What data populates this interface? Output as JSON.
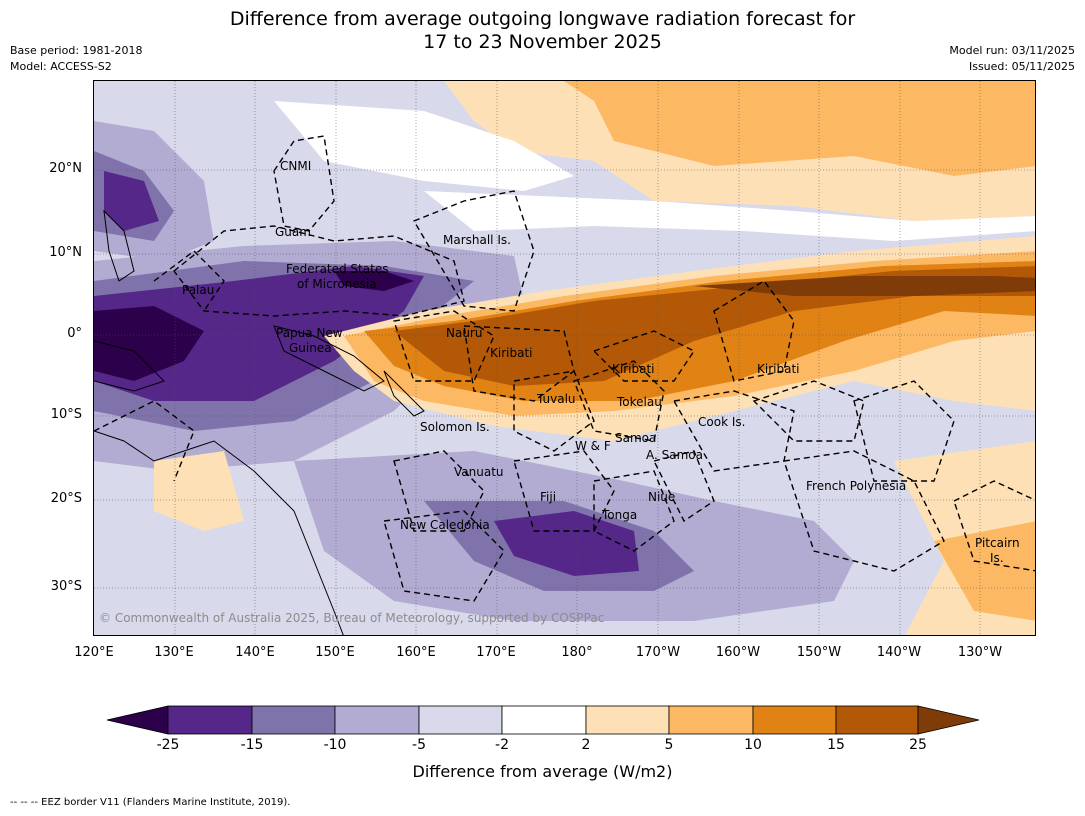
{
  "header": {
    "title_line1": "Difference from average outgoing longwave radiation forecast for",
    "title_line2": "17 to 23 November 2025",
    "base_period": "Base period: 1981-2018",
    "model": "Model: ACCESS-S2",
    "model_run": "Model run: 03/11/2025",
    "issued": "Issued: 05/11/2025"
  },
  "map": {
    "lat_ticks": [
      "20°N",
      "10°N",
      "0°",
      "10°S",
      "20°S",
      "30°S"
    ],
    "lon_ticks": [
      "120°E",
      "130°E",
      "140°E",
      "150°E",
      "160°E",
      "170°E",
      "180°",
      "170°W",
      "160°W",
      "150°W",
      "140°W",
      "130°W"
    ],
    "regions": {
      "cnmi": "CNMI",
      "guam": "Guam",
      "marshall": "Marshall Is.",
      "fsm_line1": "Federated States",
      "fsm_line2": "of Micronesia",
      "palau": "Palau",
      "png_line1": "Papua New",
      "png_line2": "Guinea",
      "nauru": "Nauru",
      "kiribati_west": "Kiribati",
      "kiribati_central": "Kiribati",
      "kiribati_east": "Kiribati",
      "tuvalu": "Tuvalu",
      "tokelau": "Tokelau",
      "cook": "Cook Is.",
      "solomon": "Solomon Is.",
      "wf": "W & F",
      "samoa": "Samoa",
      "asamoa": "A. Samoa",
      "vanuatu": "Vanuatu",
      "fiji": "Fiji",
      "niue": "Niue",
      "tonga": "Tonga",
      "new_caledonia": "New Caledonia",
      "french_polynesia": "French Polynesia",
      "pitcairn_line1": "Pitcairn",
      "pitcairn_line2": "Is."
    },
    "copyright": "© Commonwealth of Australia 2025, Bureau of Meteorology, supported by COSPPac"
  },
  "colorbar": {
    "ticks": [
      "-25",
      "-15",
      "-10",
      "-5",
      "-2",
      "2",
      "5",
      "10",
      "15",
      "25"
    ],
    "title": "Difference from average (W/m2)",
    "colors": {
      "below_min": "#2d004b",
      "c1": "#542788",
      "c2": "#8073ac",
      "c3": "#b2abd2",
      "c4": "#d8daeb",
      "c5": "#ffffff",
      "c6": "#fee0b6",
      "c7": "#fdb863",
      "c8": "#e08214",
      "c9": "#b35806",
      "above_max": "#7f3b08"
    }
  },
  "footer": {
    "legend": "--  --  -- EEZ border V11 (Flanders Marine Institute, 2019)."
  }
}
